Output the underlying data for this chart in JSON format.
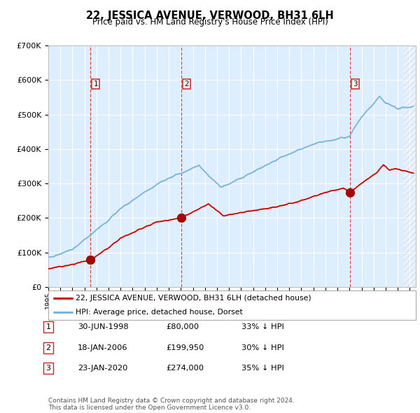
{
  "title": "22, JESSICA AVENUE, VERWOOD, BH31 6LH",
  "subtitle": "Price paid vs. HM Land Registry's House Price Index (HPI)",
  "ylim": [
    0,
    700000
  ],
  "yticks": [
    0,
    100000,
    200000,
    300000,
    400000,
    500000,
    600000,
    700000
  ],
  "ytick_labels": [
    "£0",
    "£100K",
    "£200K",
    "£300K",
    "£400K",
    "£500K",
    "£600K",
    "£700K"
  ],
  "xlim_start": 1995.0,
  "xlim_end": 2025.5,
  "bg_color": "#ddeeff",
  "hpi_color": "#7ab4d8",
  "price_color": "#cc0000",
  "sale_dates": [
    1998.496,
    2006.046,
    2020.055
  ],
  "sale_prices": [
    80000,
    199950,
    274000
  ],
  "sale_labels": [
    "1",
    "2",
    "3"
  ],
  "legend_line1": "22, JESSICA AVENUE, VERWOOD, BH31 6LH (detached house)",
  "legend_line2": "HPI: Average price, detached house, Dorset",
  "table_rows": [
    [
      "1",
      "30-JUN-1998",
      "£80,000",
      "33% ↓ HPI"
    ],
    [
      "2",
      "18-JAN-2006",
      "£199,950",
      "30% ↓ HPI"
    ],
    [
      "3",
      "23-JAN-2020",
      "£274,000",
      "35% ↓ HPI"
    ]
  ],
  "footnote": "Contains HM Land Registry data © Crown copyright and database right 2024.\nThis data is licensed under the Open Government Licence v3.0.",
  "hatch_start": 2024.5
}
